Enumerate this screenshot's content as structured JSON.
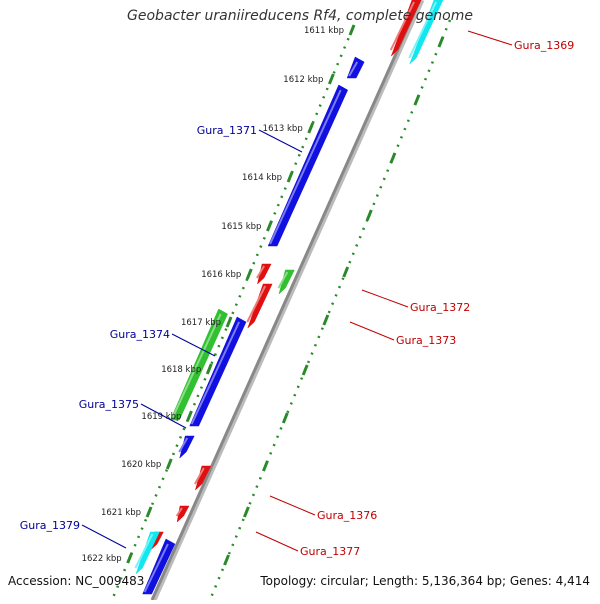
{
  "title": "Geobacter uraniireducens Rf4, complete genome",
  "accession": "Accession: NC_009483",
  "summary": "Topology: circular; Length: 5,136,364 bp; Genes: 4,414",
  "kbp_ticks": [
    "1611 kbp",
    "1612 kbp",
    "1613 kbp",
    "1614 kbp",
    "1615 kbp",
    "1616 kbp",
    "1617 kbp",
    "1618 kbp",
    "1619 kbp",
    "1620 kbp",
    "1621 kbp",
    "1622 kbp"
  ],
  "colors": {
    "blue": "#1010e0",
    "red": "#e01010",
    "green": "#30c030",
    "cyan": "#10e8f0",
    "backbone": "#888888",
    "dots": "#2a8a2a",
    "label_blue": "#00009a",
    "label_red": "#c00000"
  },
  "genes": [
    {
      "label": "Gura_1369",
      "color": "red"
    },
    {
      "label": "Gura_1371",
      "color": "blue"
    },
    {
      "label": "Gura_1372",
      "color": "red"
    },
    {
      "label": "Gura_1373",
      "color": "red"
    },
    {
      "label": "Gura_1374",
      "color": "blue"
    },
    {
      "label": "Gura_1375",
      "color": "blue"
    },
    {
      "label": "Gura_1376",
      "color": "red"
    },
    {
      "label": "Gura_1377",
      "color": "red"
    },
    {
      "label": "Gura_1379",
      "color": "blue"
    }
  ]
}
